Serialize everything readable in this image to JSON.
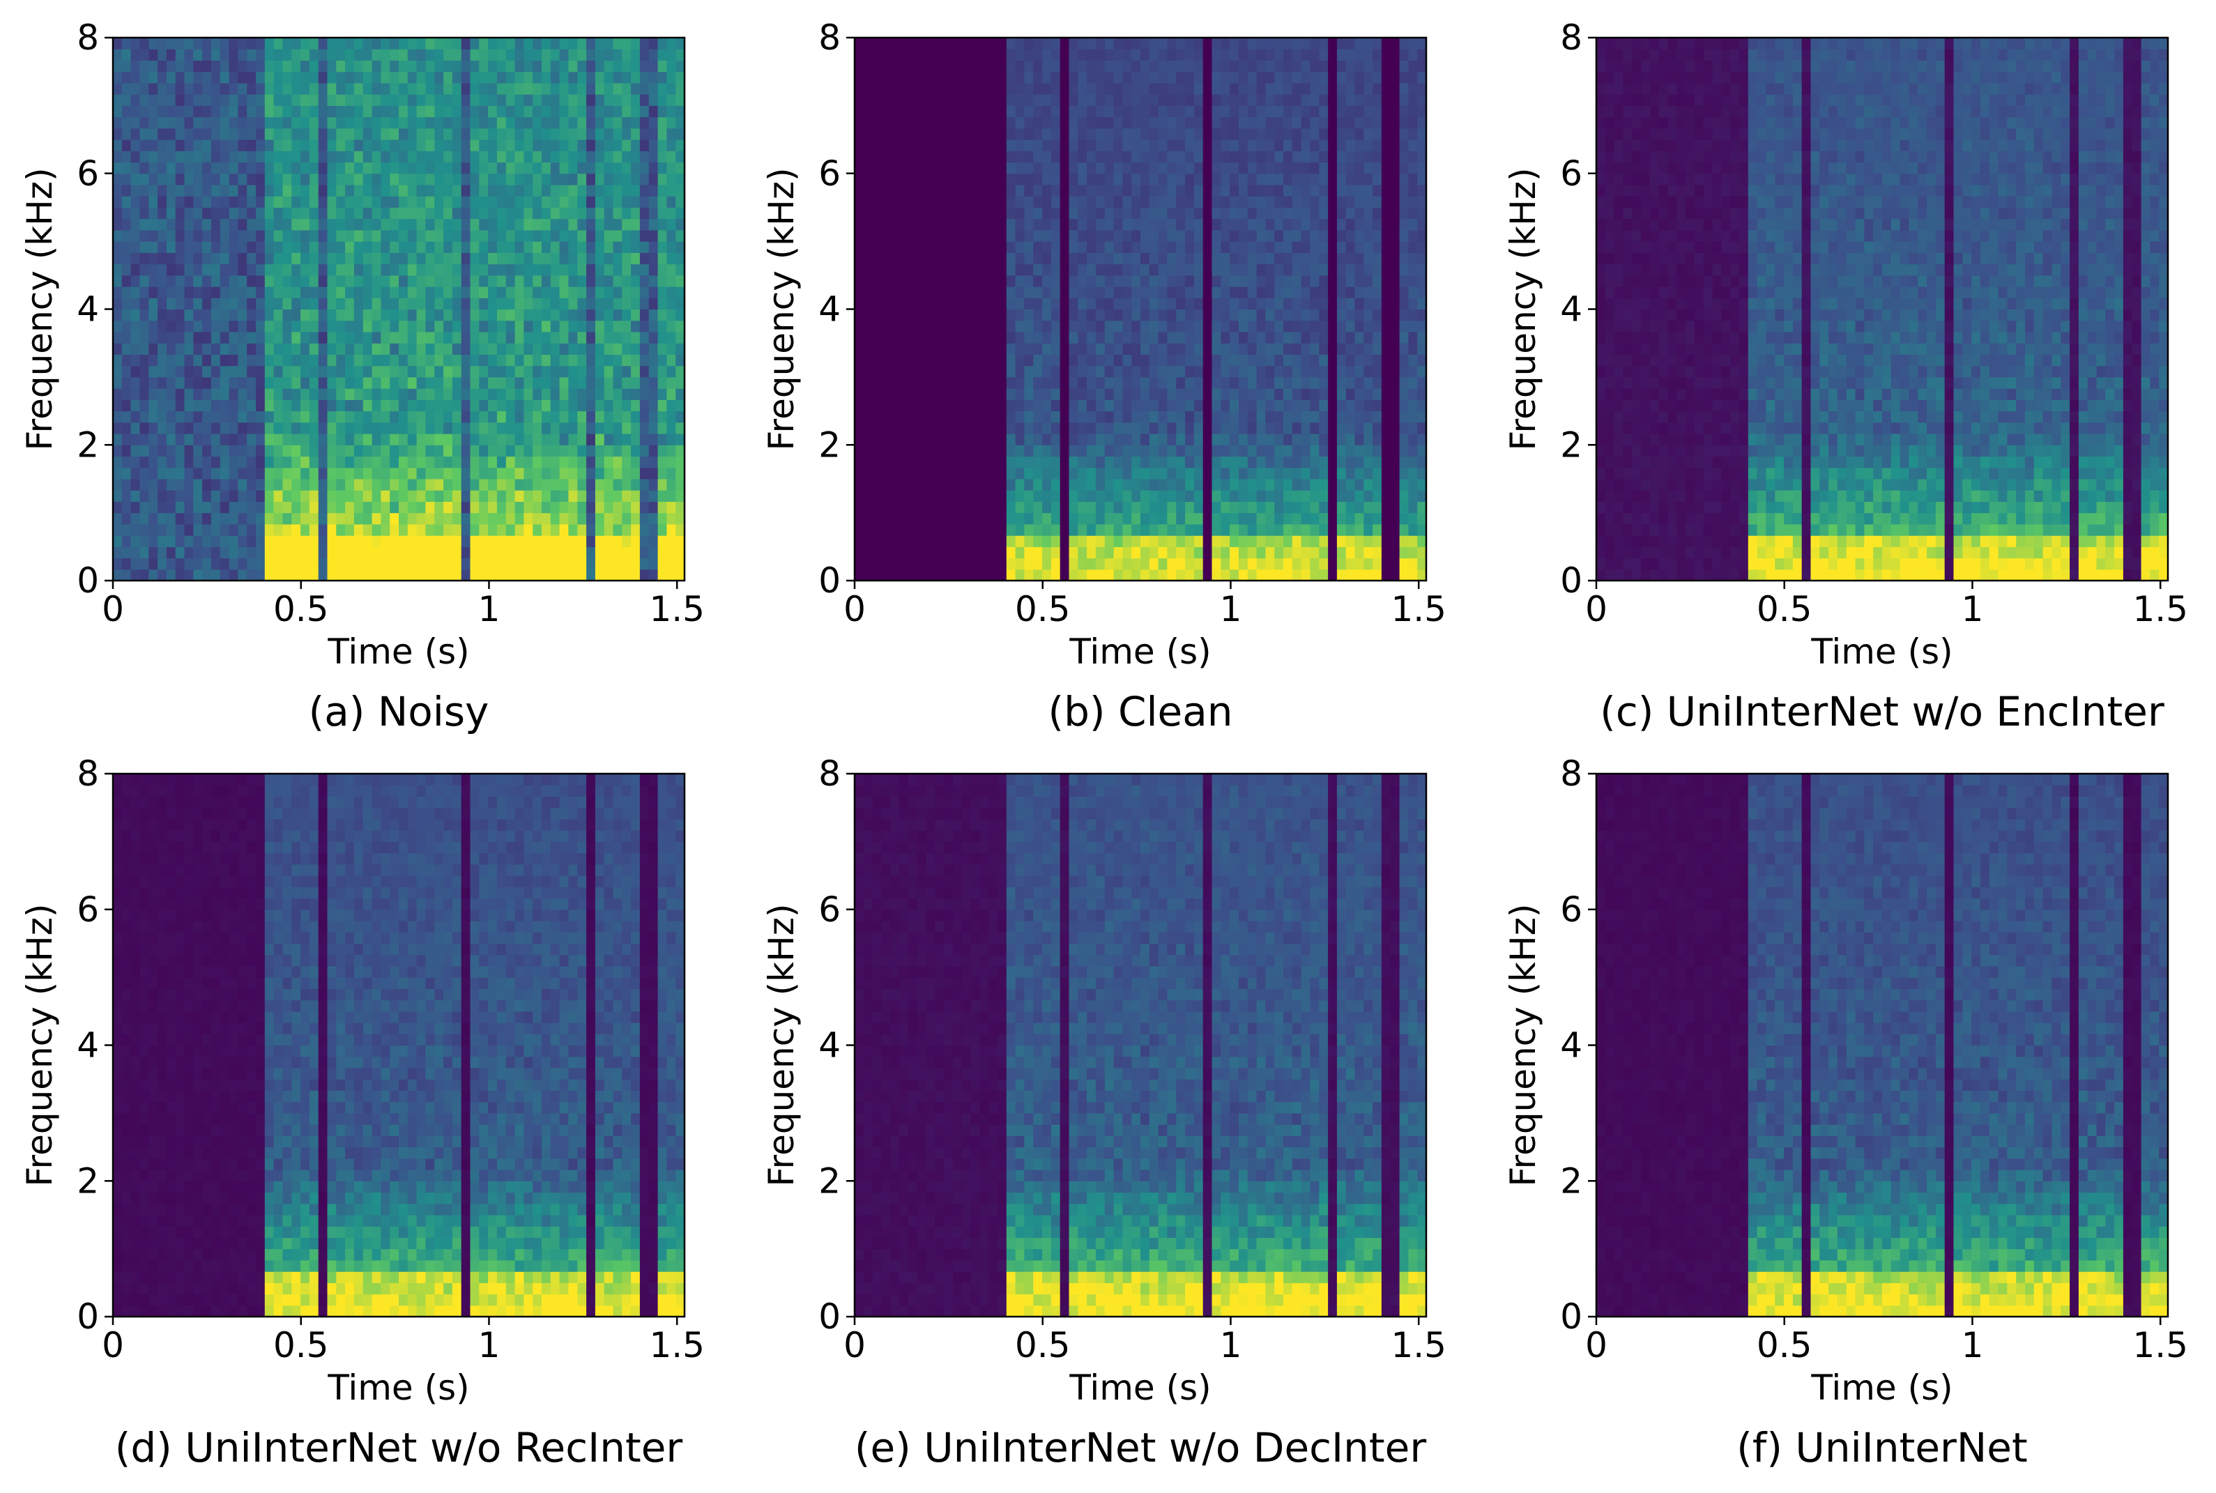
{
  "chart_data": [
    {
      "type": "heatmap",
      "title": "(a) Noisy",
      "xlabel": "Time (s)",
      "ylabel": "Frequency (kHz)",
      "xlim": [
        0,
        1.52
      ],
      "ylim": [
        0,
        8
      ],
      "xticks": [
        "0",
        "0.5",
        "1",
        "1.5"
      ],
      "yticks": [
        "0",
        "2",
        "4",
        "6",
        "8"
      ],
      "colormap": [
        "#440154",
        "#3b528b",
        "#21918c",
        "#5ec962",
        "#fde725"
      ],
      "noise_floor": 0.28,
      "speech_segments": [
        [
          0.4,
          0.55
        ],
        [
          0.58,
          0.82
        ],
        [
          0.82,
          0.92
        ],
        [
          0.95,
          1.25
        ],
        [
          1.28,
          1.4
        ],
        [
          1.44,
          1.52
        ]
      ]
    },
    {
      "type": "heatmap",
      "title": "(b) Clean",
      "xlabel": "Time (s)",
      "ylabel": "Frequency (kHz)",
      "xlim": [
        0,
        1.52
      ],
      "ylim": [
        0,
        8
      ],
      "xticks": [
        "0",
        "0.5",
        "1",
        "1.5"
      ],
      "yticks": [
        "0",
        "2",
        "4",
        "6",
        "8"
      ],
      "colormap": [
        "#440154",
        "#3b528b",
        "#21918c",
        "#5ec962",
        "#fde725"
      ],
      "noise_floor": 0.0,
      "speech_segments": [
        [
          0.4,
          0.55
        ],
        [
          0.58,
          0.82
        ],
        [
          0.82,
          0.92
        ],
        [
          0.95,
          1.25
        ],
        [
          1.28,
          1.4
        ],
        [
          1.44,
          1.52
        ]
      ]
    },
    {
      "type": "heatmap",
      "title": "(c) UniInterNet w/o EncInter",
      "xlabel": "Time (s)",
      "ylabel": "Frequency (kHz)",
      "xlim": [
        0,
        1.52
      ],
      "ylim": [
        0,
        8
      ],
      "xticks": [
        "0",
        "0.5",
        "1",
        "1.5"
      ],
      "yticks": [
        "0",
        "2",
        "4",
        "6",
        "8"
      ],
      "colormap": [
        "#440154",
        "#3b528b",
        "#21918c",
        "#5ec962",
        "#fde725"
      ],
      "noise_floor": 0.05,
      "speech_segments": [
        [
          0.4,
          0.55
        ],
        [
          0.58,
          0.82
        ],
        [
          0.82,
          0.92
        ],
        [
          0.95,
          1.25
        ],
        [
          1.28,
          1.4
        ],
        [
          1.44,
          1.52
        ]
      ]
    },
    {
      "type": "heatmap",
      "title": "(d) UniInterNet w/o RecInter",
      "xlabel": "Time (s)",
      "ylabel": "Frequency (kHz)",
      "xlim": [
        0,
        1.52
      ],
      "ylim": [
        0,
        8
      ],
      "xticks": [
        "0",
        "0.5",
        "1",
        "1.5"
      ],
      "yticks": [
        "0",
        "2",
        "4",
        "6",
        "8"
      ],
      "colormap": [
        "#440154",
        "#3b528b",
        "#21918c",
        "#5ec962",
        "#fde725"
      ],
      "noise_floor": 0.03,
      "speech_segments": [
        [
          0.4,
          0.55
        ],
        [
          0.58,
          0.82
        ],
        [
          0.82,
          0.92
        ],
        [
          0.95,
          1.25
        ],
        [
          1.28,
          1.4
        ],
        [
          1.44,
          1.52
        ]
      ]
    },
    {
      "type": "heatmap",
      "title": "(e) UniInterNet w/o DecInter",
      "xlabel": "Time (s)",
      "ylabel": "Frequency (kHz)",
      "xlim": [
        0,
        1.52
      ],
      "ylim": [
        0,
        8
      ],
      "xticks": [
        "0",
        "0.5",
        "1",
        "1.5"
      ],
      "yticks": [
        "0",
        "2",
        "4",
        "6",
        "8"
      ],
      "colormap": [
        "#440154",
        "#3b528b",
        "#21918c",
        "#5ec962",
        "#fde725"
      ],
      "noise_floor": 0.04,
      "speech_segments": [
        [
          0.4,
          0.55
        ],
        [
          0.58,
          0.82
        ],
        [
          0.82,
          0.92
        ],
        [
          0.95,
          1.25
        ],
        [
          1.28,
          1.4
        ],
        [
          1.44,
          1.52
        ]
      ]
    },
    {
      "type": "heatmap",
      "title": "(f) UniInterNet",
      "xlabel": "Time (s)",
      "ylabel": "Frequency (kHz)",
      "xlim": [
        0,
        1.52
      ],
      "ylim": [
        0,
        8
      ],
      "xticks": [
        "0",
        "0.5",
        "1",
        "1.5"
      ],
      "yticks": [
        "0",
        "2",
        "4",
        "6",
        "8"
      ],
      "colormap": [
        "#440154",
        "#3b528b",
        "#21918c",
        "#5ec962",
        "#fde725"
      ],
      "noise_floor": 0.03,
      "speech_segments": [
        [
          0.4,
          0.55
        ],
        [
          0.58,
          0.82
        ],
        [
          0.82,
          0.92
        ],
        [
          0.95,
          1.25
        ],
        [
          1.28,
          1.4
        ],
        [
          1.44,
          1.52
        ]
      ]
    }
  ]
}
